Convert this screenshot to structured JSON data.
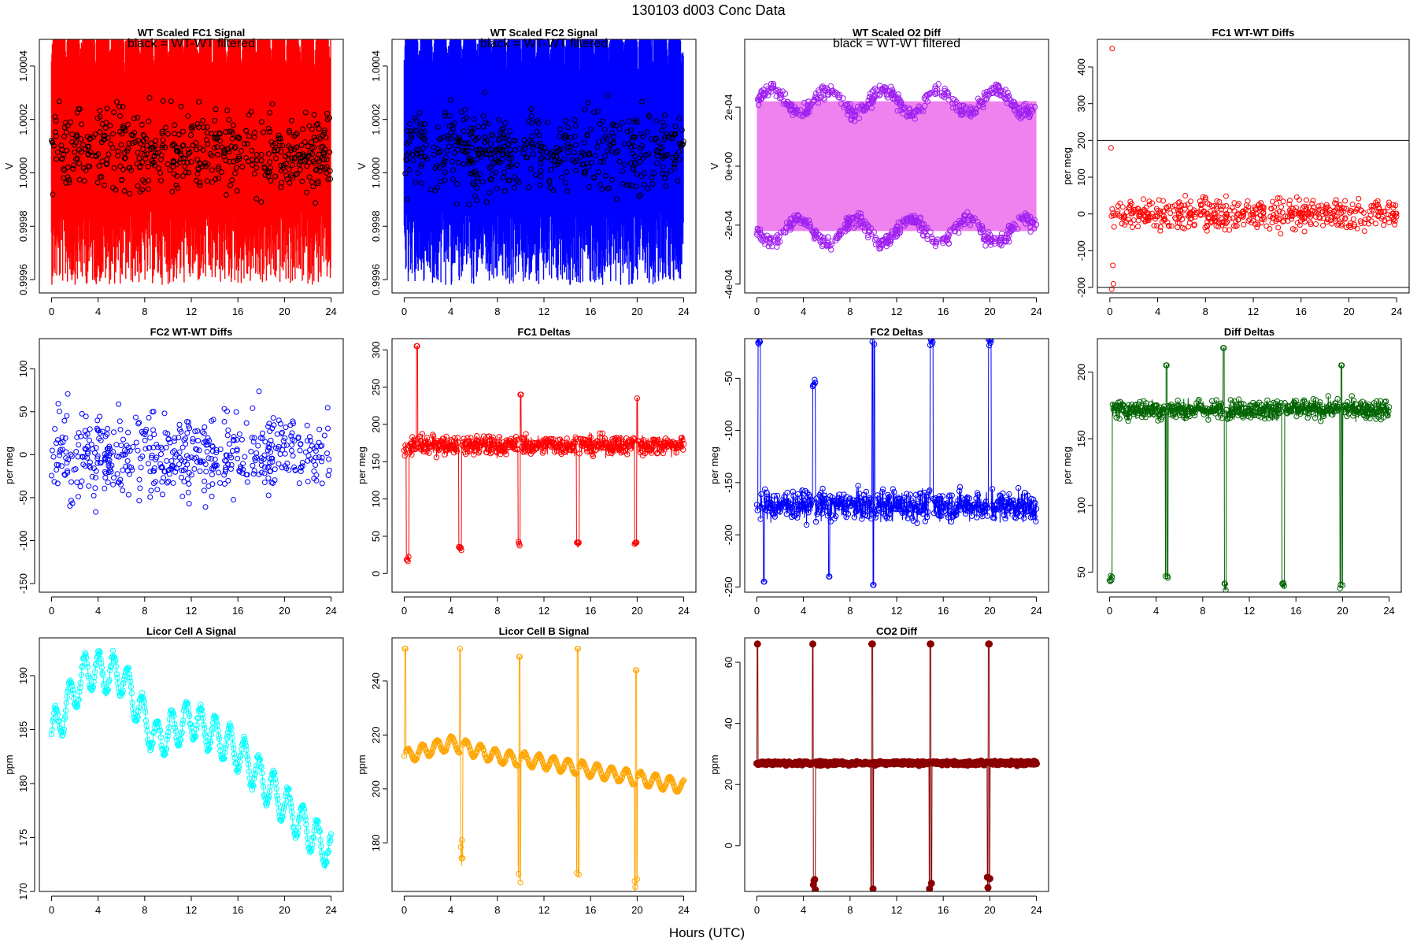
{
  "figure": {
    "title": "130103    d003    Conc Data",
    "xlabel": "Hours (UTC)",
    "x_ticks": [
      0,
      4,
      8,
      12,
      16,
      20,
      24
    ],
    "xlim": [
      0,
      24
    ]
  },
  "chart_data": [
    {
      "type": "scatter",
      "panel": "p1",
      "title": "WT Scaled FC1 Signal",
      "annotation": "black = WT-WT filtered",
      "ylabel": "V",
      "ylim": [
        0.99955,
        1.0005
      ],
      "y_ticks": [
        0.9996,
        0.9998,
        1.0,
        1.0002,
        1.0004
      ],
      "y_tick_labels": [
        "0.9996",
        "0.9998",
        "1.0000",
        "1.0002",
        "1.0004"
      ],
      "series": [
        {
          "name": "FC1 signal",
          "color": "#ff0000",
          "style": "dense-band",
          "center": 1.0001,
          "spread": 0.0004
        },
        {
          "name": "WT-WT filtered",
          "color": "#000000",
          "style": "points",
          "center": 1.00008,
          "spread": 0.00015,
          "n": 500
        }
      ]
    },
    {
      "type": "scatter",
      "panel": "p2",
      "title": "WT Scaled FC2 Signal",
      "annotation": "black = WT-WT filtered",
      "ylabel": "V",
      "ylim": [
        0.99955,
        1.0005
      ],
      "y_ticks": [
        0.9996,
        0.9998,
        1.0,
        1.0002,
        1.0004
      ],
      "y_tick_labels": [
        "0.9996",
        "0.9998",
        "1.0000",
        "1.0002",
        "1.0004"
      ],
      "series": [
        {
          "name": "FC2 signal",
          "color": "#0000ff",
          "style": "dense-band",
          "center": 1.0001,
          "spread": 0.0004
        },
        {
          "name": "WT-WT filtered",
          "color": "#000000",
          "style": "points",
          "center": 1.00008,
          "spread": 0.00015,
          "n": 500
        }
      ]
    },
    {
      "type": "scatter",
      "panel": "p3",
      "title": "WT Scaled O2 Diff",
      "annotation": "black = WT-WT filtered",
      "ylabel": "V",
      "ylim": [
        -0.00043,
        0.00043
      ],
      "y_ticks": [
        -0.0004,
        -0.0002,
        0.0,
        0.0002
      ],
      "y_tick_labels": [
        "-4e-04",
        "-2e-04",
        "0e+00",
        "2e-04"
      ],
      "series": [
        {
          "name": "O2 diff band",
          "color": "#ee82ee",
          "style": "band",
          "lower": -0.00022,
          "upper": 0.00022
        },
        {
          "name": "O2 diff points",
          "color": "#a020f0",
          "style": "twin-bands",
          "level": 0.00022,
          "spread": 4e-05,
          "n": 900
        }
      ]
    },
    {
      "type": "scatter",
      "panel": "p4",
      "title": "FC1 WT-WT Diffs",
      "ylabel": "per meg",
      "ylim": [
        -215,
        475
      ],
      "y_ticks": [
        -200,
        -100,
        0,
        100,
        200,
        300,
        400
      ],
      "y_tick_labels": [
        "-200",
        "-100",
        "0",
        "100",
        "200",
        "300",
        "400"
      ],
      "hlines": [
        200,
        -200
      ],
      "series": [
        {
          "name": "FC1 diffs",
          "color": "#ff0000",
          "style": "points",
          "center": 0,
          "spread": 40,
          "n": 500
        },
        {
          "name": "outliers",
          "color": "#ff0000",
          "style": "fixed",
          "x": [
            0.2,
            0.1,
            0.3,
            0.25,
            0.15
          ],
          "y": [
            450,
            180,
            -190,
            -140,
            -205
          ]
        }
      ]
    },
    {
      "type": "scatter",
      "panel": "p5",
      "title": "FC2 WT-WT Diffs",
      "ylabel": "per meg",
      "ylim": [
        -160,
        135
      ],
      "y_ticks": [
        -150,
        -100,
        -50,
        0,
        50,
        100
      ],
      "y_tick_labels": [
        "-150",
        "-100",
        "-50",
        "0",
        "50",
        "100"
      ],
      "series": [
        {
          "name": "FC2 diffs",
          "color": "#0000ff",
          "style": "points",
          "center": 0,
          "spread": 48,
          "n": 520
        }
      ]
    },
    {
      "type": "line",
      "panel": "p6",
      "title": "FC1 Deltas",
      "ylabel": "per meg",
      "ylim": [
        -25,
        315
      ],
      "y_ticks": [
        0,
        50,
        100,
        150,
        200,
        250,
        300
      ],
      "y_tick_labels": [
        "0",
        "50",
        "100",
        "150",
        "200",
        "250",
        "300"
      ],
      "series": [
        {
          "name": "FC1 deltas",
          "color": "#ff0000",
          "style": "noisy-line",
          "base": 172,
          "spread": 13,
          "dips": [
            [
              0.3,
              20
            ],
            [
              4.8,
              35
            ],
            [
              9.9,
              40
            ],
            [
              14.9,
              40
            ],
            [
              19.9,
              40
            ]
          ],
          "spikes": [
            [
              1.1,
              305
            ],
            [
              10.0,
              240
            ],
            [
              20.0,
              235
            ]
          ]
        }
      ]
    },
    {
      "type": "line",
      "panel": "p7",
      "title": "FC2 Deltas",
      "ylabel": "per meg",
      "ylim": [
        -255,
        -12
      ],
      "y_ticks": [
        -250,
        -200,
        -150,
        -100,
        -50
      ],
      "y_tick_labels": [
        "-250",
        "-200",
        "-150",
        "-100",
        "-50"
      ],
      "series": [
        {
          "name": "FC2 deltas",
          "color": "#0000ff",
          "style": "noisy-line",
          "base": -172,
          "spread": 14,
          "dips": [
            [
              0.2,
              -15
            ],
            [
              4.9,
              -55
            ],
            [
              10.0,
              -15
            ],
            [
              15.0,
              -15
            ],
            [
              20.0,
              -15
            ]
          ],
          "spikes": [
            [
              0.6,
              -245
            ],
            [
              10.0,
              -248
            ],
            [
              6.2,
              -240
            ]
          ]
        }
      ]
    },
    {
      "type": "line",
      "panel": "p8",
      "title": "Diff Deltas",
      "ylabel": "per meg",
      "ylim": [
        35,
        225
      ],
      "y_ticks": [
        50,
        100,
        150,
        200
      ],
      "y_tick_labels": [
        "50",
        "100",
        "150",
        "200"
      ],
      "series": [
        {
          "name": "Diff deltas",
          "color": "#006400",
          "style": "noisy-line",
          "base": 172,
          "spread": 7,
          "dips": [
            [
              0.1,
              45
            ],
            [
              4.9,
              45
            ],
            [
              9.9,
              40
            ],
            [
              14.9,
              40
            ],
            [
              19.9,
              40
            ]
          ],
          "spikes": [
            [
              9.8,
              218
            ],
            [
              4.9,
              205
            ],
            [
              19.9,
              205
            ]
          ]
        }
      ]
    },
    {
      "type": "line",
      "panel": "p9",
      "title": "Licor Cell A Signal",
      "ylabel": "ppm",
      "ylim": [
        170,
        193.5
      ],
      "y_ticks": [
        170,
        175,
        180,
        185,
        190
      ],
      "y_tick_labels": [
        "170",
        "175",
        "180",
        "185",
        "190"
      ],
      "series": [
        {
          "name": "Cell A",
          "color": "#00ffff",
          "style": "wave",
          "amplitude": 1.8,
          "period": 1.25,
          "trend_x": [
            0,
            3,
            6,
            9,
            12,
            16,
            20,
            24
          ],
          "trend_y": [
            184.5,
            190.5,
            190,
            184,
            186,
            183,
            178,
            173.5
          ]
        }
      ]
    },
    {
      "type": "line",
      "panel": "p10",
      "title": "Licor Cell B Signal",
      "ylabel": "ppm",
      "ylim": [
        162,
        256
      ],
      "y_ticks": [
        180,
        200,
        220,
        240
      ],
      "y_tick_labels": [
        "180",
        "200",
        "220",
        "240"
      ],
      "series": [
        {
          "name": "Cell B",
          "color": "#ffa500",
          "style": "wave",
          "amplitude": 2.5,
          "period": 1.25,
          "trend_x": [
            0,
            4,
            8,
            12,
            16,
            20,
            24
          ],
          "trend_y": [
            212,
            217,
            212,
            210,
            207,
            204,
            201
          ],
          "spikes": [
            [
              0.1,
              252
            ],
            [
              4.8,
              252
            ],
            [
              9.9,
              249
            ],
            [
              14.9,
              252
            ],
            [
              19.9,
              244
            ]
          ],
          "dips": [
            [
              4.9,
              175
            ],
            [
              9.9,
              169
            ],
            [
              14.9,
              169
            ],
            [
              19.9,
              164
            ]
          ]
        }
      ]
    },
    {
      "type": "line",
      "panel": "p11",
      "title": "CO2 Diff",
      "ylabel": "ppm",
      "ylim": [
        -15,
        68
      ],
      "y_ticks": [
        0,
        20,
        40,
        60
      ],
      "y_tick_labels": [
        "0",
        "20",
        "40",
        "60"
      ],
      "series": [
        {
          "name": "CO2 diff",
          "color": "#8b0000",
          "style": "flat",
          "level": 27,
          "spikes": [
            [
              0.05,
              66
            ],
            [
              4.8,
              66
            ],
            [
              9.9,
              66
            ],
            [
              14.9,
              66
            ],
            [
              19.9,
              66
            ]
          ],
          "dips": [
            [
              4.9,
              -13
            ],
            [
              9.9,
              -13
            ],
            [
              14.9,
              -13
            ],
            [
              19.9,
              -13
            ]
          ]
        }
      ]
    }
  ]
}
